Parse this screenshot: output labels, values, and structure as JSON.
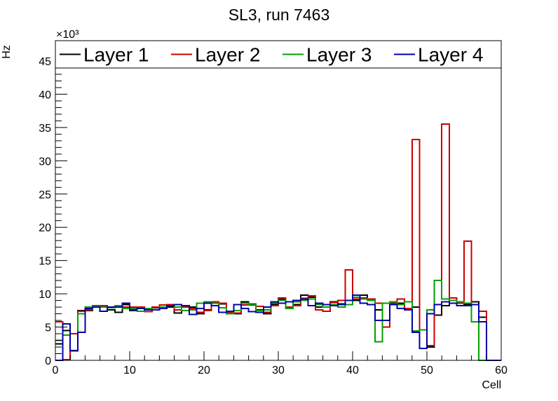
{
  "chart_data": {
    "type": "line",
    "subtype": "step-histogram",
    "title": "SL3, run 7463",
    "xlabel": "Cell",
    "ylabel": "Hz",
    "y_multiplier_label": "×10³",
    "xlim": [
      0,
      60
    ],
    "ylim": [
      0,
      47
    ],
    "x_ticks": [
      0,
      10,
      20,
      30,
      40,
      50,
      60
    ],
    "y_ticks": [
      0,
      5,
      10,
      15,
      20,
      25,
      30,
      35,
      40,
      45
    ],
    "legend_position": "top",
    "grid": false,
    "bin_width": 1,
    "x_start": 0,
    "series": [
      {
        "name": "Layer 1",
        "color": "#000000",
        "values": [
          2.5,
          4.5,
          1.5,
          7.5,
          7.5,
          8.0,
          8.0,
          7.6,
          7.2,
          8.4,
          7.5,
          7.8,
          7.6,
          7.9,
          8.0,
          8.0,
          7.1,
          8.2,
          8.0,
          7.0,
          7.6,
          8.6,
          8.5,
          7.2,
          7.0,
          8.8,
          8.3,
          7.6,
          7.0,
          8.4,
          9.2,
          8.8,
          8.4,
          9.8,
          9.5,
          8.0,
          8.0,
          8.8,
          8.5,
          8.4,
          9.0,
          9.8,
          9.0,
          7.6,
          6.0,
          8.5,
          8.6,
          7.8,
          8.0,
          4.6,
          2.0,
          6.8,
          8.2,
          8.6,
          8.6,
          8.4,
          8.8,
          6.5,
          0.0,
          0.0
        ]
      },
      {
        "name": "Layer 2",
        "color": "#cc0000",
        "values": [
          5.8,
          0.1,
          4.0,
          7.4,
          7.6,
          8.2,
          8.2,
          7.9,
          8.2,
          8.0,
          8.0,
          8.0,
          7.3,
          8.0,
          8.3,
          8.4,
          7.6,
          8.0,
          7.8,
          7.2,
          7.5,
          8.8,
          8.6,
          7.2,
          7.1,
          8.3,
          8.5,
          8.1,
          7.2,
          8.2,
          9.4,
          8.0,
          8.2,
          9.3,
          9.7,
          7.6,
          7.4,
          8.7,
          9.0,
          13.6,
          9.2,
          9.4,
          9.2,
          8.6,
          5.0,
          8.6,
          9.2,
          7.8,
          33.2,
          4.6,
          2.2,
          12.0,
          35.5,
          9.4,
          8.6,
          17.9,
          8.4,
          7.4,
          0.0,
          0.0
        ]
      },
      {
        "name": "Layer 3",
        "color": "#00a000",
        "values": [
          3.0,
          3.8,
          1.4,
          7.0,
          8.0,
          8.1,
          8.0,
          7.9,
          8.2,
          7.8,
          7.8,
          7.4,
          7.8,
          7.6,
          8.0,
          8.2,
          8.0,
          7.5,
          7.6,
          8.6,
          8.8,
          8.6,
          7.9,
          7.0,
          7.5,
          8.6,
          8.4,
          7.5,
          7.6,
          8.6,
          9.0,
          7.8,
          8.8,
          9.0,
          9.2,
          8.4,
          8.0,
          8.4,
          8.0,
          8.4,
          9.5,
          9.2,
          9.0,
          2.8,
          8.6,
          8.8,
          8.4,
          8.8,
          4.4,
          4.6,
          7.6,
          12.0,
          9.2,
          9.0,
          8.8,
          8.6,
          5.8,
          0.0,
          0.0,
          0.0
        ]
      },
      {
        "name": "Layer 4",
        "color": "#0000aa",
        "values": [
          0.0,
          5.5,
          1.4,
          4.2,
          7.8,
          8.0,
          7.4,
          8.0,
          8.0,
          8.6,
          7.6,
          7.8,
          7.6,
          7.6,
          7.8,
          8.2,
          8.4,
          8.2,
          6.9,
          7.8,
          8.6,
          8.2,
          7.2,
          7.4,
          8.4,
          7.8,
          7.3,
          7.2,
          8.0,
          8.8,
          8.6,
          8.8,
          9.0,
          9.2,
          8.2,
          8.6,
          8.4,
          8.2,
          8.4,
          9.0,
          9.8,
          8.6,
          8.4,
          6.0,
          6.0,
          8.4,
          7.8,
          7.6,
          4.2,
          1.8,
          7.0,
          8.4,
          8.8,
          8.6,
          8.2,
          8.2,
          8.4,
          5.8,
          0.0,
          0.0
        ]
      }
    ]
  }
}
